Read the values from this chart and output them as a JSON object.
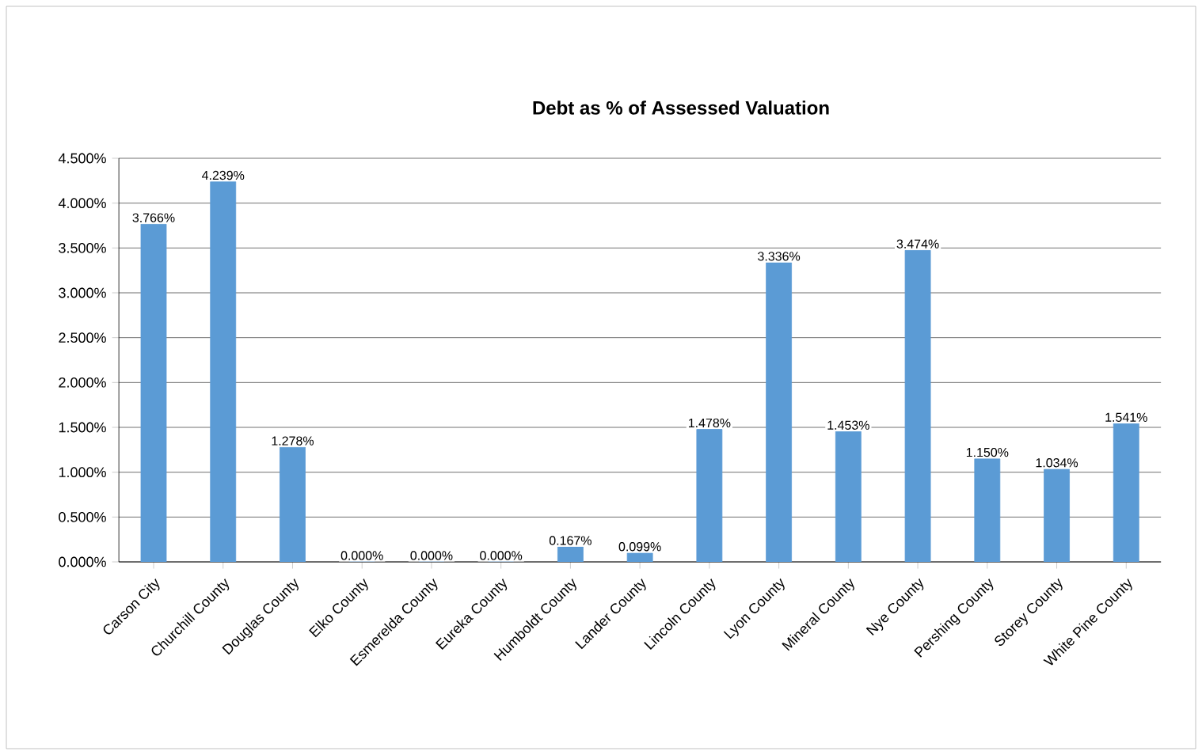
{
  "chart_data": {
    "type": "bar",
    "title": "Debt as % of Assessed Valuation",
    "categories": [
      "Carson City",
      "Churchill County",
      "Douglas County",
      "Elko County",
      "Esmerelda County",
      "Eureka County",
      "Humboldt County",
      "Lander County",
      "Lincoln County",
      "Lyon County",
      "Mineral County",
      "Nye County",
      "Pershing County",
      "Storey County",
      "White Pine County"
    ],
    "values": [
      3.766,
      4.239,
      1.278,
      0,
      0,
      0,
      0.167,
      0.099,
      1.478,
      3.336,
      1.453,
      3.474,
      1.15,
      1.034,
      1.541
    ],
    "value_labels": [
      "3.766%",
      "4.239%",
      "1.278%",
      "0.000%",
      "0.000%",
      "0.000%",
      "0.167%",
      "0.099%",
      "1.478%",
      "3.336%",
      "1.453%",
      "3.474%",
      "1.150%",
      "1.034%",
      "1.541%"
    ],
    "color": "#5b9bd5",
    "ylim": [
      0,
      4.5
    ],
    "yticks": [
      {
        "value": 0,
        "label": "0.000%"
      },
      {
        "value": 0.5,
        "label": "0.500%"
      },
      {
        "value": 1,
        "label": "1.000%"
      },
      {
        "value": 1.5,
        "label": "1.500%"
      },
      {
        "value": 2,
        "label": "2.000%"
      },
      {
        "value": 2.5,
        "label": "2.500%"
      },
      {
        "value": 3,
        "label": "3.000%"
      },
      {
        "value": 3.5,
        "label": "3.500%"
      },
      {
        "value": 4,
        "label": "4.000%"
      },
      {
        "value": 4.5,
        "label": "4.500%"
      }
    ],
    "grid": "y"
  }
}
